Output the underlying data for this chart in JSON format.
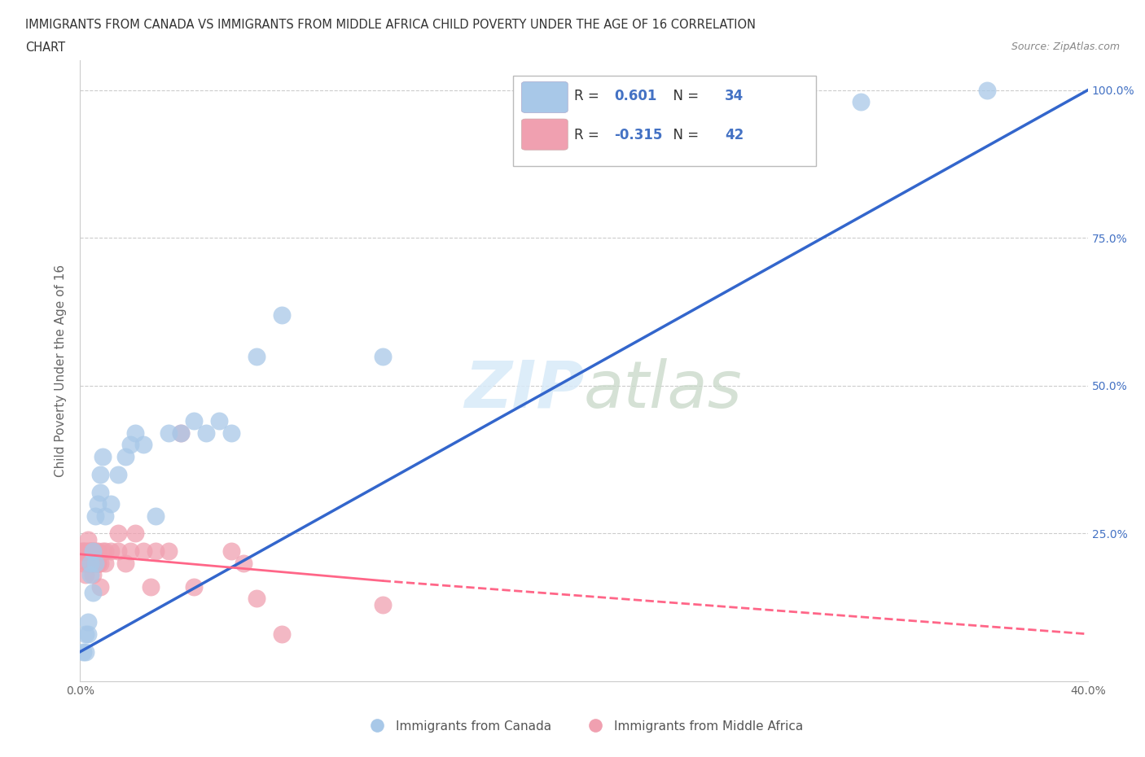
{
  "title_line1": "IMMIGRANTS FROM CANADA VS IMMIGRANTS FROM MIDDLE AFRICA CHILD POVERTY UNDER THE AGE OF 16 CORRELATION",
  "title_line2": "CHART",
  "source_text": "Source: ZipAtlas.com",
  "ylabel": "Child Poverty Under the Age of 16",
  "xlim": [
    0.0,
    0.4
  ],
  "ylim": [
    0.0,
    1.05
  ],
  "R_canada": 0.601,
  "N_canada": 34,
  "R_africa": -0.315,
  "N_africa": 42,
  "canada_color": "#a8c8e8",
  "africa_color": "#f0a0b0",
  "canada_line_color": "#3366cc",
  "africa_line_color": "#ff6688",
  "canada_scatter_x": [
    0.001,
    0.002,
    0.002,
    0.003,
    0.003,
    0.004,
    0.004,
    0.005,
    0.005,
    0.006,
    0.006,
    0.007,
    0.008,
    0.008,
    0.009,
    0.01,
    0.012,
    0.015,
    0.018,
    0.02,
    0.022,
    0.025,
    0.03,
    0.035,
    0.04,
    0.045,
    0.05,
    0.055,
    0.06,
    0.07,
    0.08,
    0.12,
    0.31,
    0.36
  ],
  "canada_scatter_y": [
    0.05,
    0.08,
    0.05,
    0.08,
    0.1,
    0.18,
    0.2,
    0.15,
    0.22,
    0.2,
    0.28,
    0.3,
    0.32,
    0.35,
    0.38,
    0.28,
    0.3,
    0.35,
    0.38,
    0.4,
    0.42,
    0.4,
    0.28,
    0.42,
    0.42,
    0.44,
    0.42,
    0.44,
    0.42,
    0.55,
    0.62,
    0.55,
    0.98,
    1.0
  ],
  "africa_scatter_x": [
    0.0,
    0.001,
    0.001,
    0.001,
    0.002,
    0.002,
    0.003,
    0.003,
    0.003,
    0.004,
    0.004,
    0.004,
    0.005,
    0.005,
    0.005,
    0.006,
    0.006,
    0.007,
    0.007,
    0.007,
    0.008,
    0.008,
    0.009,
    0.01,
    0.01,
    0.012,
    0.015,
    0.015,
    0.018,
    0.02,
    0.022,
    0.025,
    0.028,
    0.03,
    0.035,
    0.04,
    0.045,
    0.06,
    0.065,
    0.07,
    0.08,
    0.12
  ],
  "africa_scatter_y": [
    0.22,
    0.22,
    0.22,
    0.2,
    0.22,
    0.18,
    0.22,
    0.24,
    0.2,
    0.22,
    0.2,
    0.22,
    0.22,
    0.18,
    0.22,
    0.2,
    0.22,
    0.2,
    0.22,
    0.2,
    0.2,
    0.16,
    0.22,
    0.2,
    0.22,
    0.22,
    0.22,
    0.25,
    0.2,
    0.22,
    0.25,
    0.22,
    0.16,
    0.22,
    0.22,
    0.42,
    0.16,
    0.22,
    0.2,
    0.14,
    0.08,
    0.13
  ],
  "background_color": "#ffffff",
  "grid_color": "#cccccc"
}
